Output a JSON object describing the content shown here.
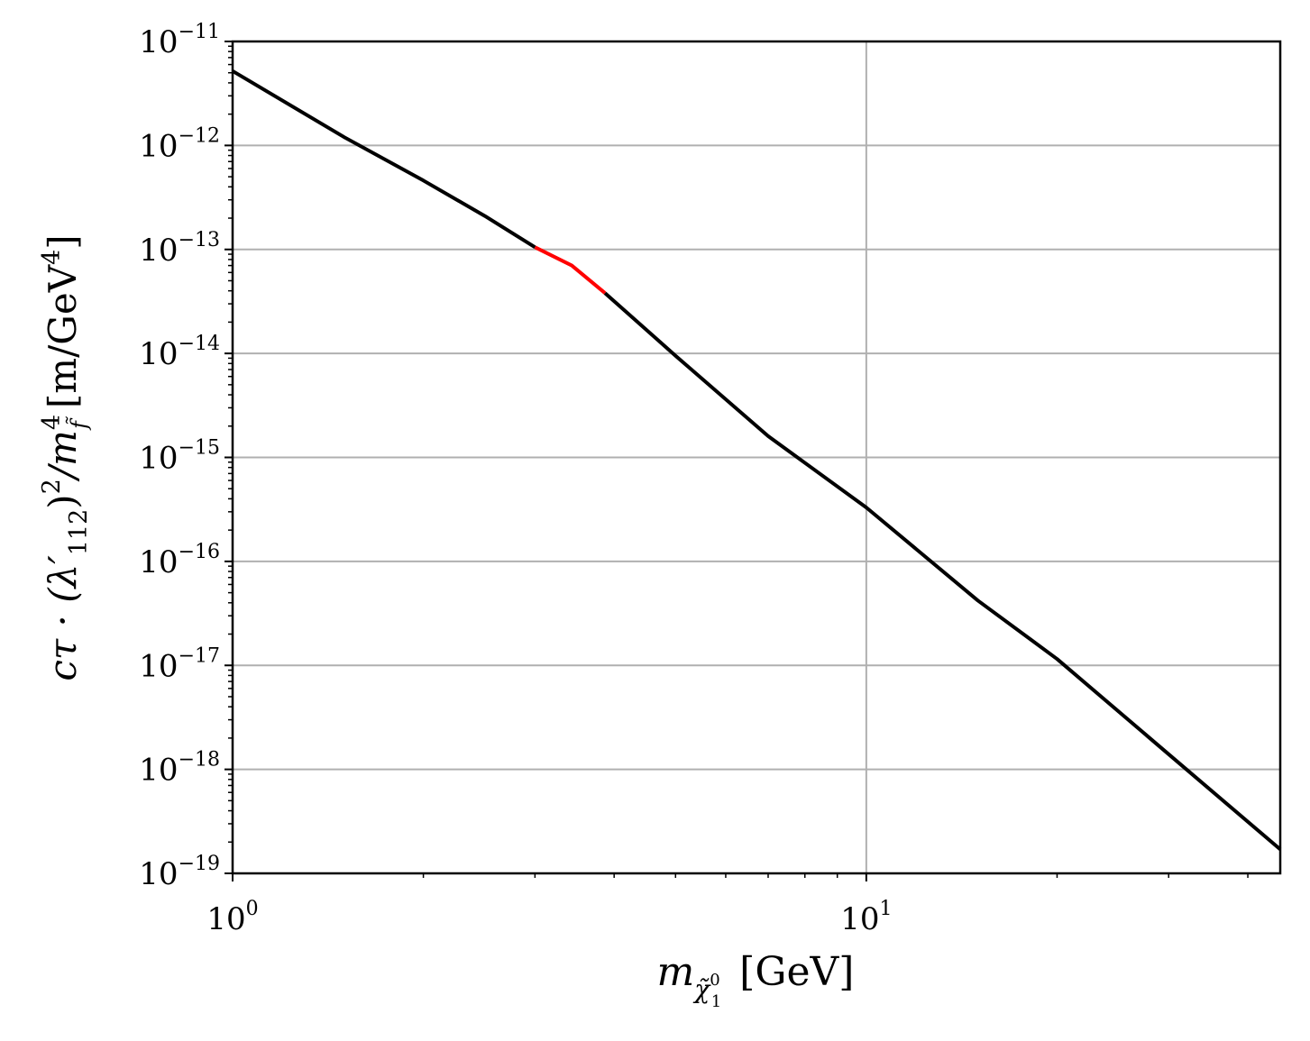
{
  "chart_data": {
    "type": "line",
    "title": "",
    "xlabel": {
      "main": "m",
      "sub": "χ̃",
      "sub_sup": "0",
      "sub_sub": "1",
      "unit": "[GeV]"
    },
    "ylabel": {
      "text1": "cτ · (λ′",
      "sub1": "112",
      "text2": ")",
      "sup1": "2",
      "text3": "/m",
      "sup2": "4",
      "sub2": "f̃",
      "unit": "[m/GeV",
      "sup3": "4",
      "unit_end": "]"
    },
    "x_scale": "log",
    "y_scale": "log",
    "xlim": [
      1,
      45
    ],
    "ylim": [
      1e-19,
      1e-11
    ],
    "grid": true,
    "x_ticks": [
      {
        "base": "10",
        "exp": "0",
        "value": 1
      },
      {
        "base": "10",
        "exp": "1",
        "value": 10
      }
    ],
    "y_ticks": [
      {
        "base": "10",
        "exp": "−11",
        "value": 1e-11
      },
      {
        "base": "10",
        "exp": "−12",
        "value": 1e-12
      },
      {
        "base": "10",
        "exp": "−13",
        "value": 1e-13
      },
      {
        "base": "10",
        "exp": "−14",
        "value": 1e-14
      },
      {
        "base": "10",
        "exp": "−15",
        "value": 1e-15
      },
      {
        "base": "10",
        "exp": "−16",
        "value": 1e-16
      },
      {
        "base": "10",
        "exp": "−17",
        "value": 1e-17
      },
      {
        "base": "10",
        "exp": "−18",
        "value": 1e-18
      },
      {
        "base": "10",
        "exp": "−19",
        "value": 1e-19
      }
    ],
    "series": [
      {
        "color": "#000000",
        "x": [
          1.0,
          1.5,
          2.0,
          2.5,
          3.0
        ],
        "y": [
          5.2e-12,
          1.2e-12,
          4.6e-13,
          2.1e-13,
          1.05e-13
        ]
      },
      {
        "color": "#ff0000",
        "x": [
          3.0,
          3.43,
          3.87
        ],
        "y": [
          1.05e-13,
          7e-14,
          3.8e-14
        ]
      },
      {
        "color": "#000000",
        "x": [
          3.87,
          5.0,
          7.0,
          10.0,
          15.0,
          20.0,
          30.0,
          45.0
        ],
        "y": [
          3.8e-14,
          9.5e-15,
          1.6e-15,
          3.3e-16,
          4.2e-17,
          1.15e-17,
          1.4e-18,
          1.7e-19
        ]
      }
    ]
  }
}
